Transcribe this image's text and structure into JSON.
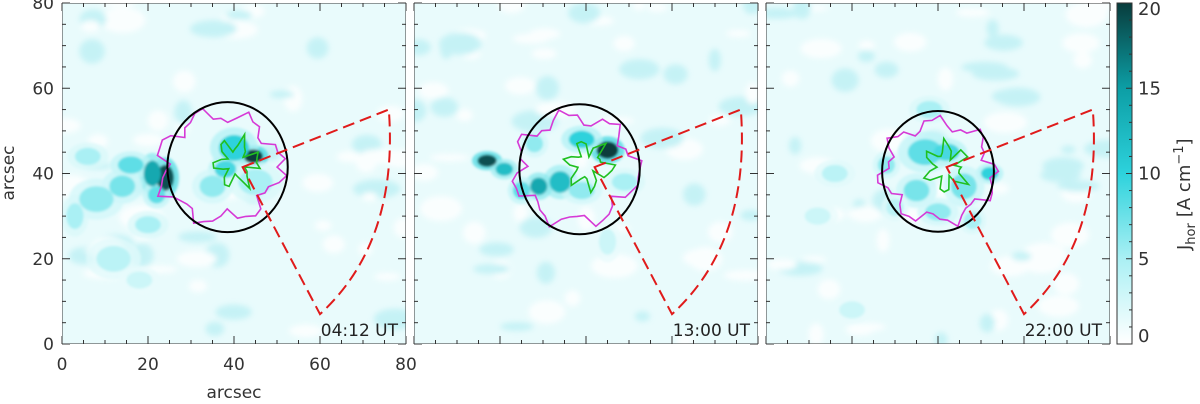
{
  "chart_data": {
    "type": "heatmap",
    "panels": [
      {
        "time": "04:12 UT",
        "circle": {
          "cx": 38.5,
          "cy": 41.5,
          "r": 14
        },
        "blobs": [
          [
            44.5,
            44,
            2.2,
            1.6,
            20
          ],
          [
            40,
            46,
            3.5,
            3,
            10
          ],
          [
            38,
            41,
            2.5,
            2,
            9
          ],
          [
            35,
            37,
            3,
            2.5,
            6
          ],
          [
            24,
            39,
            2,
            3,
            19
          ],
          [
            21,
            40,
            2,
            3,
            14
          ],
          [
            22,
            35,
            2,
            2,
            8
          ],
          [
            16,
            42,
            3,
            2,
            8
          ],
          [
            14,
            37,
            3,
            2.5,
            7
          ],
          [
            8,
            34,
            4,
            3,
            6
          ],
          [
            6,
            44,
            3,
            2,
            5
          ],
          [
            45,
            38,
            4,
            3,
            5
          ],
          [
            20,
            28,
            3,
            2,
            5
          ],
          [
            12,
            20,
            4,
            3,
            4
          ],
          [
            18,
            15,
            3,
            2,
            3
          ],
          [
            3,
            30,
            2,
            3,
            5
          ]
        ]
      },
      {
        "time": "13:00 UT",
        "circle": {
          "cx": 38.5,
          "cy": 41,
          "r": 14
        },
        "blobs": [
          [
            45,
            45.5,
            2.5,
            2,
            20
          ],
          [
            39,
            48,
            3,
            2,
            10
          ],
          [
            34,
            38,
            2.5,
            2.5,
            12
          ],
          [
            29,
            37,
            2,
            2,
            14
          ],
          [
            17,
            43,
            2.2,
            1.4,
            19
          ],
          [
            21,
            41,
            2,
            1.5,
            12
          ],
          [
            25,
            36,
            2,
            2,
            8
          ],
          [
            39,
            36,
            3,
            2,
            6
          ],
          [
            49,
            38,
            3,
            2,
            5
          ],
          [
            28,
            47,
            2,
            2,
            6
          ],
          [
            45,
            24,
            2,
            3,
            3
          ]
        ]
      },
      {
        "time": "22:00 UT",
        "circle": {
          "cx": 40,
          "cy": 40.5,
          "r": 13
        },
        "blobs": [
          [
            52,
            40,
            2,
            1.5,
            10
          ],
          [
            37,
            45,
            4,
            3,
            8
          ],
          [
            42,
            45,
            3,
            2,
            9
          ],
          [
            28,
            42,
            2,
            2,
            6
          ],
          [
            35,
            36,
            3,
            2.5,
            7
          ],
          [
            46,
            37,
            3,
            3,
            7
          ],
          [
            40,
            31,
            3,
            2,
            6
          ],
          [
            30,
            32,
            2,
            2,
            4
          ],
          [
            48,
            29,
            2,
            2,
            5
          ],
          [
            16,
            40,
            3,
            2,
            4
          ],
          [
            12,
            30,
            3,
            2,
            3
          ],
          [
            38,
            55,
            3,
            2,
            5
          ],
          [
            20,
            8,
            3,
            2,
            3
          ]
        ]
      }
    ],
    "wedge": {
      "apex": [
        42,
        41.5
      ],
      "outer_points": [
        [
          76,
          55
        ],
        [
          60,
          7
        ]
      ]
    },
    "x_axis": {
      "label": "arcsec",
      "range": [
        0,
        80
      ],
      "ticks": [
        0,
        20,
        40,
        60,
        80
      ]
    },
    "y_axis": {
      "label": "arcsec",
      "range": [
        0,
        80
      ],
      "ticks": [
        0,
        20,
        40,
        60,
        80
      ]
    },
    "colorbar": {
      "range": [
        0,
        20
      ],
      "ticks": [
        0,
        5,
        10,
        15,
        20
      ],
      "label": "J_hor [A cm^-1]"
    },
    "contour_colors": {
      "magenta": "#d63ad6",
      "green": "#20c020",
      "circle": "#000000",
      "wedge": "#e01b1b"
    },
    "colormap": {
      "low": "#ffffff",
      "mid": "#00c0d0",
      "high": "#003b3b"
    }
  },
  "labels": {
    "x_title": "arcsec",
    "y_title": "arcsec",
    "cb_text_main": "J",
    "cb_text_sub": "hor",
    "cb_text_unit_open": "[A cm",
    "cb_text_unit_sup": "−1",
    "cb_text_unit_close": "]"
  }
}
